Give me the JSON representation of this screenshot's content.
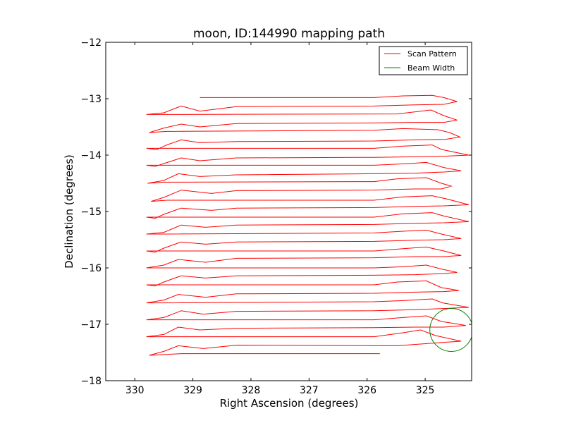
{
  "chart_data": {
    "type": "line",
    "title": "moon, ID:144990 mapping path",
    "xlabel": "Right Ascension (degrees)",
    "ylabel": "Declination (degrees)",
    "xlim": [
      330.5,
      324.2
    ],
    "ylim": [
      -18,
      -12
    ],
    "xticks": [
      330,
      329,
      328,
      327,
      326,
      325
    ],
    "xtick_labels": [
      "330",
      "329",
      "328",
      "327",
      "326",
      "325"
    ],
    "yticks": [
      -12,
      -13,
      -14,
      -15,
      -16,
      -17,
      -18
    ],
    "ytick_labels": [
      "−12",
      "−13",
      "−14",
      "−15",
      "−16",
      "−17",
      "−18"
    ],
    "grid": false,
    "legend_position": "top-right",
    "series": [
      {
        "name": "Scan Pattern",
        "color": "#ff0000",
        "points": [
          [
            328.88,
            -12.98
          ],
          [
            325.88,
            -12.98
          ],
          [
            325.38,
            -12.95
          ],
          [
            324.88,
            -12.94
          ],
          [
            324.68,
            -12.98
          ],
          [
            324.45,
            -13.05
          ],
          [
            324.68,
            -13.1
          ],
          [
            325.18,
            -13.11
          ],
          [
            325.88,
            -13.13
          ],
          [
            328.25,
            -13.14
          ],
          [
            328.88,
            -13.22
          ],
          [
            329.2,
            -13.13
          ],
          [
            329.5,
            -13.25
          ],
          [
            329.8,
            -13.28
          ],
          [
            329.5,
            -13.28
          ],
          [
            325.48,
            -13.27
          ],
          [
            324.9,
            -13.2
          ],
          [
            324.68,
            -13.3
          ],
          [
            324.45,
            -13.38
          ],
          [
            324.68,
            -13.42
          ],
          [
            325.18,
            -13.42
          ],
          [
            325.88,
            -13.43
          ],
          [
            328.25,
            -13.44
          ],
          [
            328.88,
            -13.5
          ],
          [
            329.2,
            -13.45
          ],
          [
            329.5,
            -13.52
          ],
          [
            329.75,
            -13.6
          ],
          [
            329.45,
            -13.58
          ],
          [
            325.88,
            -13.56
          ],
          [
            325.38,
            -13.53
          ],
          [
            324.78,
            -13.55
          ],
          [
            324.58,
            -13.6
          ],
          [
            324.4,
            -13.68
          ],
          [
            324.65,
            -13.72
          ],
          [
            325.18,
            -13.73
          ],
          [
            325.88,
            -13.75
          ],
          [
            328.25,
            -13.76
          ],
          [
            328.88,
            -13.78
          ],
          [
            329.2,
            -13.73
          ],
          [
            329.45,
            -13.82
          ],
          [
            329.62,
            -13.9
          ],
          [
            329.8,
            -13.88
          ],
          [
            325.88,
            -13.88
          ],
          [
            325.38,
            -13.84
          ],
          [
            324.88,
            -13.82
          ],
          [
            324.72,
            -13.9
          ],
          [
            324.25,
            -14.0
          ],
          [
            324.68,
            -14.02
          ],
          [
            325.18,
            -14.03
          ],
          [
            325.88,
            -14.04
          ],
          [
            328.25,
            -14.05
          ],
          [
            328.88,
            -14.1
          ],
          [
            329.2,
            -14.05
          ],
          [
            329.5,
            -14.15
          ],
          [
            329.65,
            -14.2
          ],
          [
            329.8,
            -14.18
          ],
          [
            325.88,
            -14.18
          ],
          [
            325.28,
            -14.15
          ],
          [
            324.98,
            -14.13
          ],
          [
            324.68,
            -14.22
          ],
          [
            324.38,
            -14.28
          ],
          [
            324.68,
            -14.3
          ],
          [
            325.18,
            -14.32
          ],
          [
            325.88,
            -14.33
          ],
          [
            328.25,
            -14.35
          ],
          [
            328.88,
            -14.38
          ],
          [
            329.25,
            -14.33
          ],
          [
            329.5,
            -14.45
          ],
          [
            329.78,
            -14.5
          ],
          [
            329.5,
            -14.48
          ],
          [
            325.88,
            -14.47
          ],
          [
            325.48,
            -14.42
          ],
          [
            324.98,
            -14.4
          ],
          [
            324.72,
            -14.5
          ],
          [
            324.55,
            -14.55
          ],
          [
            324.72,
            -14.6
          ],
          [
            325.18,
            -14.6
          ],
          [
            325.88,
            -14.62
          ],
          [
            328.25,
            -14.63
          ],
          [
            328.68,
            -14.68
          ],
          [
            329.2,
            -14.62
          ],
          [
            329.5,
            -14.75
          ],
          [
            329.72,
            -14.82
          ],
          [
            329.45,
            -14.8
          ],
          [
            325.88,
            -14.8
          ],
          [
            325.38,
            -14.74
          ],
          [
            324.88,
            -14.72
          ],
          [
            324.62,
            -14.78
          ],
          [
            324.25,
            -14.88
          ],
          [
            324.68,
            -14.9
          ],
          [
            325.18,
            -14.91
          ],
          [
            325.88,
            -14.93
          ],
          [
            328.25,
            -14.94
          ],
          [
            328.68,
            -14.98
          ],
          [
            329.2,
            -14.94
          ],
          [
            329.5,
            -15.05
          ],
          [
            329.65,
            -15.12
          ],
          [
            329.8,
            -15.1
          ],
          [
            325.88,
            -15.1
          ],
          [
            325.38,
            -15.04
          ],
          [
            324.88,
            -15.02
          ],
          [
            324.68,
            -15.08
          ],
          [
            324.25,
            -15.18
          ],
          [
            324.68,
            -15.2
          ],
          [
            325.18,
            -15.21
          ],
          [
            325.88,
            -15.23
          ],
          [
            328.25,
            -15.24
          ],
          [
            328.78,
            -15.28
          ],
          [
            329.2,
            -15.24
          ],
          [
            329.5,
            -15.37
          ],
          [
            329.8,
            -15.4
          ],
          [
            329.5,
            -15.4
          ],
          [
            325.88,
            -15.38
          ],
          [
            325.38,
            -15.35
          ],
          [
            324.98,
            -15.33
          ],
          [
            324.72,
            -15.4
          ],
          [
            324.38,
            -15.48
          ],
          [
            324.68,
            -15.5
          ],
          [
            325.18,
            -15.51
          ],
          [
            325.88,
            -15.53
          ],
          [
            328.25,
            -15.54
          ],
          [
            328.78,
            -15.58
          ],
          [
            329.2,
            -15.54
          ],
          [
            329.5,
            -15.65
          ],
          [
            329.65,
            -15.72
          ],
          [
            329.8,
            -15.7
          ],
          [
            325.88,
            -15.7
          ],
          [
            325.38,
            -15.66
          ],
          [
            324.98,
            -15.63
          ],
          [
            324.68,
            -15.7
          ],
          [
            324.38,
            -15.78
          ],
          [
            324.68,
            -15.8
          ],
          [
            325.18,
            -15.8
          ],
          [
            325.88,
            -15.82
          ],
          [
            328.25,
            -15.83
          ],
          [
            328.78,
            -15.9
          ],
          [
            329.25,
            -15.85
          ],
          [
            329.5,
            -15.95
          ],
          [
            329.8,
            -16.0
          ],
          [
            329.5,
            -16.0
          ],
          [
            325.88,
            -16.0
          ],
          [
            325.38,
            -15.98
          ],
          [
            324.98,
            -15.95
          ],
          [
            324.72,
            -16.02
          ],
          [
            324.45,
            -16.08
          ],
          [
            324.68,
            -16.1
          ],
          [
            325.18,
            -16.12
          ],
          [
            325.88,
            -16.13
          ],
          [
            328.25,
            -16.14
          ],
          [
            328.78,
            -16.18
          ],
          [
            329.2,
            -16.14
          ],
          [
            329.5,
            -16.25
          ],
          [
            329.65,
            -16.32
          ],
          [
            329.8,
            -16.3
          ],
          [
            325.88,
            -16.3
          ],
          [
            325.48,
            -16.25
          ],
          [
            324.98,
            -16.23
          ],
          [
            324.72,
            -16.35
          ],
          [
            324.42,
            -16.4
          ],
          [
            324.68,
            -16.42
          ],
          [
            325.18,
            -16.43
          ],
          [
            325.88,
            -16.45
          ],
          [
            328.25,
            -16.46
          ],
          [
            328.78,
            -16.52
          ],
          [
            329.25,
            -16.47
          ],
          [
            329.5,
            -16.57
          ],
          [
            329.8,
            -16.62
          ],
          [
            329.5,
            -16.62
          ],
          [
            325.88,
            -16.6
          ],
          [
            325.38,
            -16.58
          ],
          [
            324.88,
            -16.55
          ],
          [
            324.7,
            -16.62
          ],
          [
            324.25,
            -16.7
          ],
          [
            324.68,
            -16.72
          ],
          [
            325.18,
            -16.74
          ],
          [
            325.88,
            -16.76
          ],
          [
            328.25,
            -16.77
          ],
          [
            328.82,
            -16.82
          ],
          [
            329.2,
            -16.76
          ],
          [
            329.5,
            -16.88
          ],
          [
            329.8,
            -16.92
          ],
          [
            329.5,
            -16.92
          ],
          [
            325.88,
            -16.92
          ],
          [
            325.38,
            -16.88
          ],
          [
            324.98,
            -16.85
          ],
          [
            324.72,
            -16.95
          ],
          [
            324.3,
            -17.02
          ],
          [
            324.68,
            -17.05
          ],
          [
            325.18,
            -17.05
          ],
          [
            325.88,
            -17.06
          ],
          [
            328.25,
            -17.07
          ],
          [
            328.88,
            -17.1
          ],
          [
            329.25,
            -17.05
          ],
          [
            329.5,
            -17.18
          ],
          [
            329.8,
            -17.22
          ],
          [
            329.5,
            -17.22
          ],
          [
            325.88,
            -17.22
          ],
          [
            325.38,
            -17.15
          ],
          [
            325.08,
            -17.1
          ],
          [
            324.82,
            -17.2
          ],
          [
            324.38,
            -17.3
          ],
          [
            324.68,
            -17.32
          ],
          [
            325.48,
            -17.38
          ],
          [
            325.88,
            -17.38
          ],
          [
            328.25,
            -17.37
          ],
          [
            328.82,
            -17.43
          ],
          [
            329.25,
            -17.38
          ],
          [
            329.5,
            -17.48
          ],
          [
            329.75,
            -17.55
          ],
          [
            329.2,
            -17.52
          ],
          [
            325.78,
            -17.52
          ]
        ]
      }
    ],
    "beam": {
      "name": "Beam Width",
      "color": "#008000",
      "center": [
        324.55,
        -17.1
      ],
      "radius": 0.37
    },
    "legend": [
      "Scan Pattern",
      "Beam Width"
    ]
  }
}
